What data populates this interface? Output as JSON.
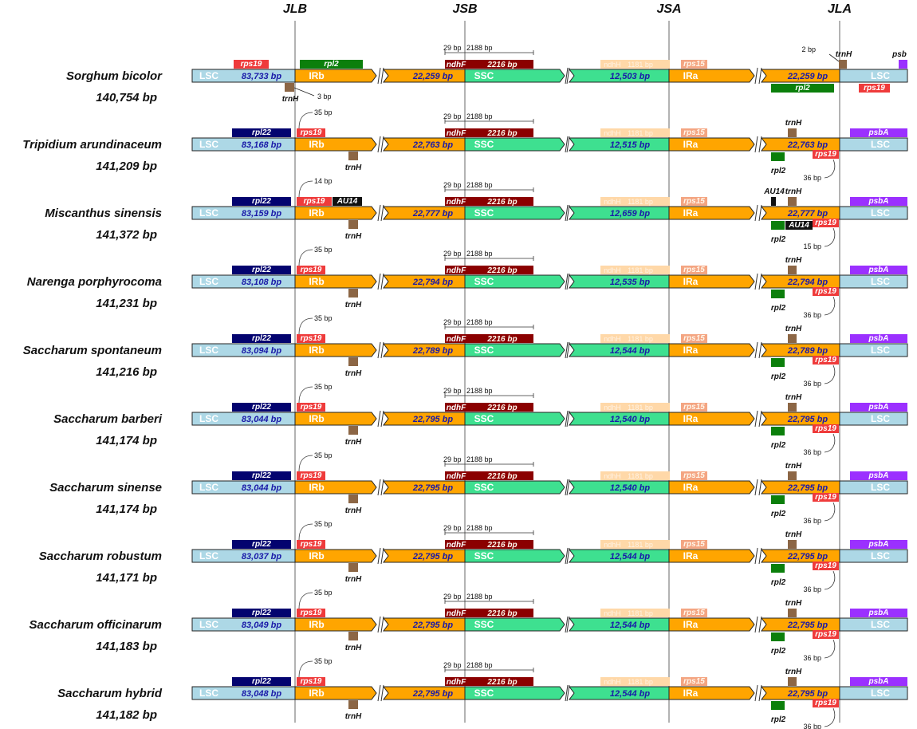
{
  "junctions": [
    "JLB",
    "JSB",
    "JSA",
    "JLA"
  ],
  "regions": [
    "LSC",
    "IRb",
    "SSC",
    "IRa",
    "LSC"
  ],
  "colors": {
    "lsc": "#add8e6",
    "ir": "#ffa500",
    "ssc": "#3ee090",
    "rps19": "#ef3b3b",
    "rpl2": "#0b7f0b",
    "rpl22": "#03036f",
    "ndhF": "#8b0000",
    "ndhH": "#ffd8a8",
    "rps15": "#f4a582",
    "trnH": "#8c6645",
    "psbA": "#9b30ff",
    "AU14": "#111111",
    "junction": "#a0a0a0"
  },
  "genes": {
    "rps19": "rps19",
    "rpl2": "rpl2",
    "rpl22": "rpl22",
    "trnH": "trnH",
    "ndhF": "ndhF",
    "ndhH": "ndhH",
    "ndhH_len": "1181 bp",
    "rps15": "rps15",
    "psbA": "psbA",
    "psbA_short": "psb",
    "AU14": "AU14"
  },
  "annotations": {
    "ndhF_offset": "29 bp",
    "ndhF_span": "2188 bp",
    "ndhF_len": "2216 bp",
    "sorghum_trnH_left": "3 bp",
    "sorghum_trnH_right": "2 bp"
  },
  "species": [
    {
      "name": "Sorghum bicolor",
      "length": "140,754 bp",
      "lsc": "83,733 bp",
      "irb": "22,259 bp",
      "ssc": "12,503 bp",
      "ira": "22,259 bp",
      "rps19_offset": "",
      "rps19_right_offset": ""
    },
    {
      "name": "Tripidium arundinaceum",
      "length": "141,209 bp",
      "lsc": "83,168 bp",
      "irb": "22,763 bp",
      "ssc": "12,515 bp",
      "ira": "22,763 bp",
      "rps19_offset": "35 bp",
      "rps19_right_offset": "36 bp"
    },
    {
      "name": "Miscanthus sinensis",
      "length": "141,372 bp",
      "lsc": "83,159 bp",
      "irb": "22,777 bp",
      "ssc": "12,659 bp",
      "ira": "22,777 bp",
      "rps19_offset": "14 bp",
      "rps19_right_offset": "15 bp"
    },
    {
      "name": "Narenga porphyrocoma",
      "length": "141,231 bp",
      "lsc": "83,108 bp",
      "irb": "22,794 bp",
      "ssc": "12,535 bp",
      "ira": "22,794 bp",
      "rps19_offset": "35 bp",
      "rps19_right_offset": "36 bp"
    },
    {
      "name": "Saccharum spontaneum",
      "length": "141,216 bp",
      "lsc": "83,094 bp",
      "irb": "22,789 bp",
      "ssc": "12,544 bp",
      "ira": "22,789 bp",
      "rps19_offset": "35 bp",
      "rps19_right_offset": "36 bp"
    },
    {
      "name": "Saccharum barberi",
      "length": "141,174 bp",
      "lsc": "83,044 bp",
      "irb": "22,795 bp",
      "ssc": "12,540 bp",
      "ira": "22,795 bp",
      "rps19_offset": "35 bp",
      "rps19_right_offset": "36 bp"
    },
    {
      "name": "Saccharum sinense",
      "length": "141,174 bp",
      "lsc": "83,044 bp",
      "irb": "22,795 bp",
      "ssc": "12,540 bp",
      "ira": "22,795 bp",
      "rps19_offset": "35 bp",
      "rps19_right_offset": "36 bp"
    },
    {
      "name": "Saccharum robustum",
      "length": "141,171 bp",
      "lsc": "83,037 bp",
      "irb": "22,795 bp",
      "ssc": "12,544 bp",
      "ira": "22,795 bp",
      "rps19_offset": "35 bp",
      "rps19_right_offset": "36 bp"
    },
    {
      "name": "Saccharum officinarum",
      "length": "141,183 bp",
      "lsc": "83,049 bp",
      "irb": "22,795 bp",
      "ssc": "12,544 bp",
      "ira": "22,795 bp",
      "rps19_offset": "35 bp",
      "rps19_right_offset": "36 bp"
    },
    {
      "name": "Saccharum hybrid",
      "length": "141,182 bp",
      "lsc": "83,048 bp",
      "irb": "22,795 bp",
      "ssc": "12,544 bp",
      "ira": "22,795 bp",
      "rps19_offset": "35 bp",
      "rps19_right_offset": "36 bp"
    }
  ]
}
